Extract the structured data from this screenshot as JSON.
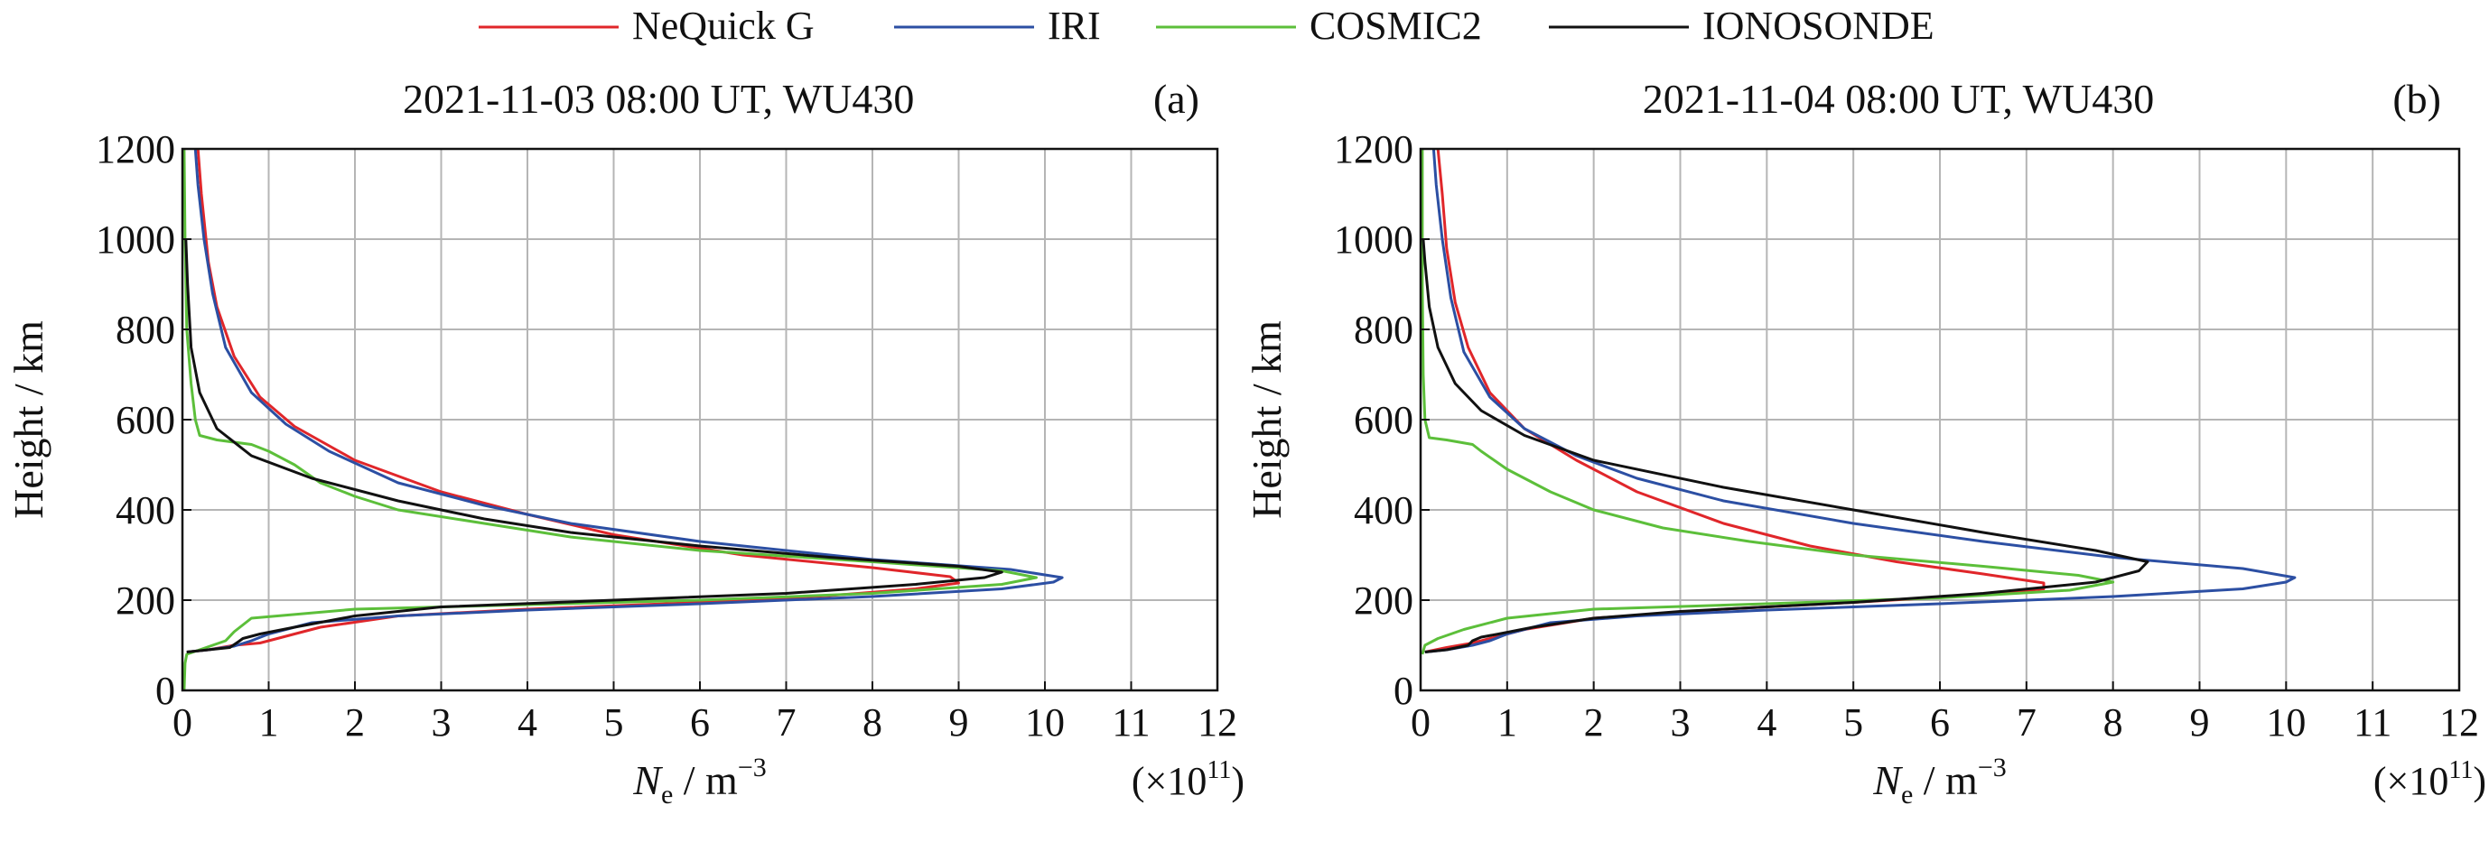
{
  "legend": {
    "placement": "top-center",
    "entries": [
      {
        "label": "NeQuick G",
        "color": "#e0262a"
      },
      {
        "label": "IRI",
        "color": "#2c4fa3"
      },
      {
        "label": "COSMIC2",
        "color": "#5cbf3a"
      },
      {
        "label": "IONOSONDE",
        "color": "#111111"
      }
    ]
  },
  "chart_data": [
    {
      "type": "line",
      "panel_label": "(a)",
      "title": "2021-11-03 08:00 UT, WU430",
      "xlabel_main": "N",
      "xlabel_sub": "e",
      "xlabel_rest": " / m",
      "xlabel_exp": "−3",
      "x_multiplier_prefix": "(×10",
      "x_multiplier_exp": "11",
      "x_multiplier_suffix": ")",
      "ylabel": "Height / km",
      "xlim": [
        0,
        12
      ],
      "ylim": [
        0,
        1200
      ],
      "xticks": [
        "0",
        "1",
        "2",
        "3",
        "4",
        "5",
        "6",
        "7",
        "8",
        "9",
        "10",
        "11",
        "12"
      ],
      "yticks": [
        "0",
        "200",
        "400",
        "600",
        "800",
        "1000",
        "1200"
      ],
      "grid": true,
      "series": [
        {
          "name": "NeQuick G",
          "color": "#e0262a",
          "points": [
            [
              0.05,
              85
            ],
            [
              0.3,
              90
            ],
            [
              0.6,
              100
            ],
            [
              0.9,
              105
            ],
            [
              1.1,
              115
            ],
            [
              1.3,
              125
            ],
            [
              1.6,
              140
            ],
            [
              2.5,
              165
            ],
            [
              4,
              180
            ],
            [
              6,
              195
            ],
            [
              7.5,
              210
            ],
            [
              8.5,
              225
            ],
            [
              9.0,
              238
            ],
            [
              8.9,
              252
            ],
            [
              8.0,
              272
            ],
            [
              6.5,
              300
            ],
            [
              5.0,
              345
            ],
            [
              4.0,
              390
            ],
            [
              3.0,
              440
            ],
            [
              2.0,
              510
            ],
            [
              1.3,
              585
            ],
            [
              0.9,
              650
            ],
            [
              0.6,
              740
            ],
            [
              0.4,
              850
            ],
            [
              0.3,
              950
            ],
            [
              0.22,
              1100
            ],
            [
              0.18,
              1200
            ]
          ]
        },
        {
          "name": "IRI",
          "color": "#2c4fa3",
          "points": [
            [
              0.05,
              85
            ],
            [
              0.3,
              90
            ],
            [
              0.6,
              98
            ],
            [
              0.8,
              110
            ],
            [
              1.0,
              125
            ],
            [
              1.5,
              150
            ],
            [
              2.5,
              165
            ],
            [
              4,
              178
            ],
            [
              6,
              192
            ],
            [
              8,
              208
            ],
            [
              9.5,
              225
            ],
            [
              10.1,
              240
            ],
            [
              10.2,
              250
            ],
            [
              9.6,
              268
            ],
            [
              8.0,
              290
            ],
            [
              6.0,
              330
            ],
            [
              4.5,
              370
            ],
            [
              3.5,
              410
            ],
            [
              2.5,
              460
            ],
            [
              1.7,
              530
            ],
            [
              1.2,
              590
            ],
            [
              0.8,
              660
            ],
            [
              0.5,
              760
            ],
            [
              0.35,
              880
            ],
            [
              0.25,
              1000
            ],
            [
              0.18,
              1120
            ],
            [
              0.15,
              1200
            ]
          ]
        },
        {
          "name": "COSMIC2",
          "color": "#5cbf3a",
          "points": [
            [
              0.02,
              0
            ],
            [
              0.03,
              60
            ],
            [
              0.05,
              80
            ],
            [
              0.2,
              90
            ],
            [
              0.5,
              110
            ],
            [
              0.6,
              130
            ],
            [
              0.8,
              160
            ],
            [
              2.0,
              180
            ],
            [
              4,
              190
            ],
            [
              6,
              200
            ],
            [
              8,
              215
            ],
            [
              9.5,
              235
            ],
            [
              9.9,
              250
            ],
            [
              9.5,
              265
            ],
            [
              8.0,
              285
            ],
            [
              6.0,
              310
            ],
            [
              4.5,
              340
            ],
            [
              3.5,
              370
            ],
            [
              2.5,
              400
            ],
            [
              2.0,
              430
            ],
            [
              1.6,
              460
            ],
            [
              1.3,
              500
            ],
            [
              1.0,
              530
            ],
            [
              0.8,
              545
            ],
            [
              0.4,
              555
            ],
            [
              0.2,
              565
            ],
            [
              0.15,
              600
            ],
            [
              0.1,
              680
            ],
            [
              0.05,
              800
            ],
            [
              0.03,
              1000
            ],
            [
              0.02,
              1200
            ]
          ]
        },
        {
          "name": "IONOSONDE",
          "color": "#111111",
          "points": [
            [
              0.05,
              85
            ],
            [
              0.3,
              90
            ],
            [
              0.55,
              95
            ],
            [
              0.65,
              108
            ],
            [
              0.7,
              115
            ],
            [
              0.9,
              125
            ],
            [
              1.3,
              140
            ],
            [
              2.0,
              165
            ],
            [
              3,
              185
            ],
            [
              5,
              200
            ],
            [
              7,
              215
            ],
            [
              8.5,
              235
            ],
            [
              9.3,
              250
            ],
            [
              9.5,
              262
            ],
            [
              9.0,
              275
            ],
            [
              7.5,
              295
            ],
            [
              6.0,
              320
            ],
            [
              4.5,
              350
            ],
            [
              3.5,
              380
            ],
            [
              2.5,
              420
            ],
            [
              1.5,
              470
            ],
            [
              0.8,
              520
            ],
            [
              0.4,
              580
            ],
            [
              0.2,
              660
            ],
            [
              0.1,
              760
            ],
            [
              0.06,
              900
            ],
            [
              0.04,
              1000
            ]
          ]
        }
      ]
    },
    {
      "type": "line",
      "panel_label": "(b)",
      "title": "2021-11-04 08:00 UT, WU430",
      "xlabel_main": "N",
      "xlabel_sub": "e",
      "xlabel_rest": " / m",
      "xlabel_exp": "−3",
      "x_multiplier_prefix": "(×10",
      "x_multiplier_exp": "11",
      "x_multiplier_suffix": ")",
      "ylabel": "Height / km",
      "xlim": [
        0,
        12
      ],
      "ylim": [
        0,
        1200
      ],
      "xticks": [
        "0",
        "1",
        "2",
        "3",
        "4",
        "5",
        "6",
        "7",
        "8",
        "9",
        "10",
        "11",
        "12"
      ],
      "yticks": [
        "0",
        "200",
        "400",
        "600",
        "800",
        "1000",
        "1200"
      ],
      "grid": true,
      "series": [
        {
          "name": "NeQuick G",
          "color": "#e0262a",
          "points": [
            [
              0.05,
              85
            ],
            [
              0.3,
              95
            ],
            [
              0.6,
              105
            ],
            [
              0.8,
              115
            ],
            [
              1.2,
              135
            ],
            [
              2.0,
              160
            ],
            [
              3.5,
              180
            ],
            [
              5,
              195
            ],
            [
              6.5,
              212
            ],
            [
              7.2,
              225
            ],
            [
              7.2,
              238
            ],
            [
              6.5,
              258
            ],
            [
              5.5,
              285
            ],
            [
              4.5,
              320
            ],
            [
              3.5,
              370
            ],
            [
              2.5,
              440
            ],
            [
              1.8,
              510
            ],
            [
              1.2,
              580
            ],
            [
              0.8,
              660
            ],
            [
              0.55,
              760
            ],
            [
              0.4,
              860
            ],
            [
              0.3,
              980
            ],
            [
              0.25,
              1100
            ],
            [
              0.2,
              1200
            ]
          ]
        },
        {
          "name": "IRI",
          "color": "#2c4fa3",
          "points": [
            [
              0.05,
              85
            ],
            [
              0.3,
              90
            ],
            [
              0.6,
              100
            ],
            [
              0.8,
              110
            ],
            [
              1.0,
              125
            ],
            [
              1.5,
              150
            ],
            [
              2.5,
              165
            ],
            [
              4,
              178
            ],
            [
              6,
              192
            ],
            [
              8,
              208
            ],
            [
              9.5,
              225
            ],
            [
              10.0,
              240
            ],
            [
              10.1,
              250
            ],
            [
              9.5,
              270
            ],
            [
              8.0,
              295
            ],
            [
              6.5,
              330
            ],
            [
              5.0,
              370
            ],
            [
              3.5,
              420
            ],
            [
              2.5,
              470
            ],
            [
              1.8,
              520
            ],
            [
              1.2,
              580
            ],
            [
              0.8,
              650
            ],
            [
              0.5,
              750
            ],
            [
              0.35,
              870
            ],
            [
              0.25,
              1000
            ],
            [
              0.18,
              1120
            ],
            [
              0.15,
              1200
            ]
          ]
        },
        {
          "name": "COSMIC2",
          "color": "#5cbf3a",
          "points": [
            [
              0.02,
              80
            ],
            [
              0.05,
              100
            ],
            [
              0.2,
              115
            ],
            [
              0.5,
              135
            ],
            [
              1.0,
              160
            ],
            [
              2.0,
              180
            ],
            [
              4,
              192
            ],
            [
              6,
              205
            ],
            [
              7.5,
              222
            ],
            [
              8.0,
              240
            ],
            [
              7.6,
              255
            ],
            [
              6.5,
              275
            ],
            [
              5.0,
              300
            ],
            [
              3.8,
              330
            ],
            [
              2.8,
              360
            ],
            [
              2.0,
              400
            ],
            [
              1.5,
              440
            ],
            [
              1.0,
              490
            ],
            [
              0.7,
              530
            ],
            [
              0.6,
              545
            ],
            [
              0.3,
              555
            ],
            [
              0.1,
              560
            ],
            [
              0.05,
              600
            ],
            [
              0.03,
              700
            ],
            [
              0.02,
              900
            ],
            [
              0.02,
              1200
            ]
          ]
        },
        {
          "name": "IONOSONDE",
          "color": "#111111",
          "points": [
            [
              0.05,
              85
            ],
            [
              0.3,
              90
            ],
            [
              0.55,
              100
            ],
            [
              0.6,
              110
            ],
            [
              0.7,
              118
            ],
            [
              0.9,
              125
            ],
            [
              1.3,
              140
            ],
            [
              2.0,
              160
            ],
            [
              3,
              175
            ],
            [
              5,
              195
            ],
            [
              6.5,
              215
            ],
            [
              7.8,
              240
            ],
            [
              8.3,
              265
            ],
            [
              8.4,
              285
            ],
            [
              7.8,
              310
            ],
            [
              6.5,
              350
            ],
            [
              5.0,
              400
            ],
            [
              3.5,
              450
            ],
            [
              2.0,
              510
            ],
            [
              1.2,
              565
            ],
            [
              0.7,
              620
            ],
            [
              0.4,
              680
            ],
            [
              0.2,
              760
            ],
            [
              0.1,
              850
            ],
            [
              0.05,
              950
            ],
            [
              0.03,
              1000
            ]
          ]
        }
      ]
    }
  ]
}
